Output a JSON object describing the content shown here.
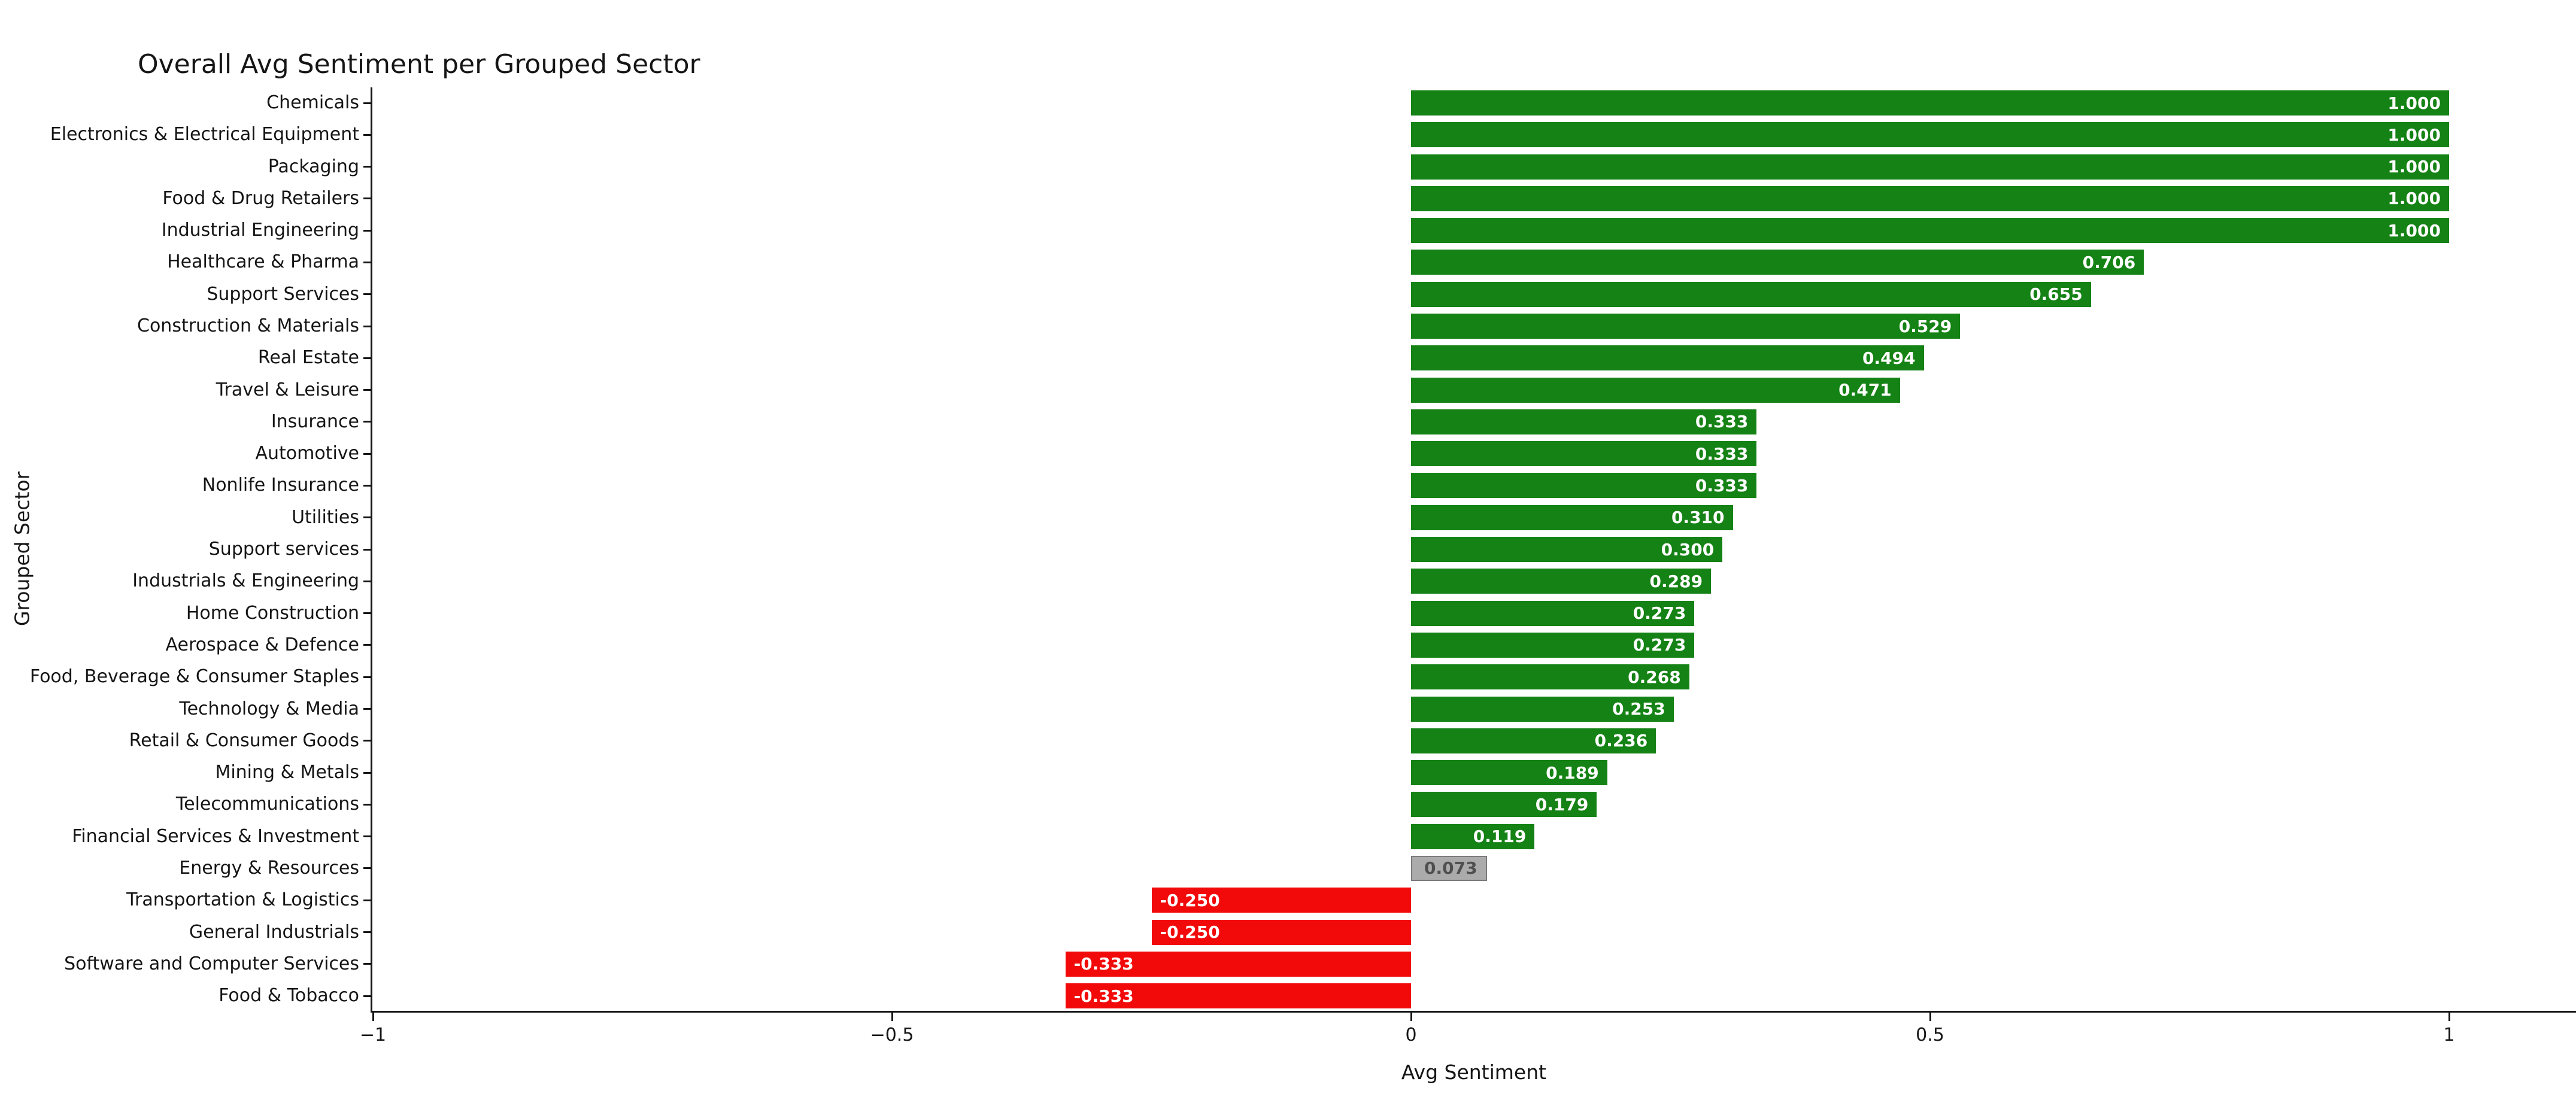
{
  "chart_data": {
    "type": "bar",
    "orientation": "horizontal",
    "title": "Overall Avg Sentiment per Grouped Sector",
    "xlabel": "Avg Sentiment",
    "ylabel": "Grouped Sector",
    "xlim": [
      -1,
      1.12
    ],
    "grid": false,
    "legend": false,
    "xticks": {
      "values": [
        -1,
        -0.5,
        0,
        0.5,
        1
      ],
      "labels": [
        "−1",
        "−0.5",
        "0",
        "0.5",
        "1"
      ]
    },
    "bars": [
      {
        "label": "Chemicals",
        "value": 1.0,
        "display": "1.000",
        "tone": "positive"
      },
      {
        "label": "Electronics & Electrical Equipment",
        "value": 1.0,
        "display": "1.000",
        "tone": "positive"
      },
      {
        "label": "Packaging",
        "value": 1.0,
        "display": "1.000",
        "tone": "positive"
      },
      {
        "label": "Food & Drug Retailers",
        "value": 1.0,
        "display": "1.000",
        "tone": "positive"
      },
      {
        "label": "Industrial Engineering",
        "value": 1.0,
        "display": "1.000",
        "tone": "positive"
      },
      {
        "label": "Healthcare & Pharma",
        "value": 0.706,
        "display": "0.706",
        "tone": "positive"
      },
      {
        "label": "Support Services",
        "value": 0.655,
        "display": "0.655",
        "tone": "positive"
      },
      {
        "label": "Construction & Materials",
        "value": 0.529,
        "display": "0.529",
        "tone": "positive"
      },
      {
        "label": "Real Estate",
        "value": 0.494,
        "display": "0.494",
        "tone": "positive"
      },
      {
        "label": "Travel & Leisure",
        "value": 0.471,
        "display": "0.471",
        "tone": "positive"
      },
      {
        "label": "Insurance",
        "value": 0.333,
        "display": "0.333",
        "tone": "positive"
      },
      {
        "label": "Automotive",
        "value": 0.333,
        "display": "0.333",
        "tone": "positive"
      },
      {
        "label": "Nonlife Insurance",
        "value": 0.333,
        "display": "0.333",
        "tone": "positive"
      },
      {
        "label": "Utilities",
        "value": 0.31,
        "display": "0.310",
        "tone": "positive"
      },
      {
        "label": "Support services",
        "value": 0.3,
        "display": "0.300",
        "tone": "positive"
      },
      {
        "label": "Industrials & Engineering",
        "value": 0.289,
        "display": "0.289",
        "tone": "positive"
      },
      {
        "label": "Home Construction",
        "value": 0.273,
        "display": "0.273",
        "tone": "positive"
      },
      {
        "label": "Aerospace & Defence",
        "value": 0.273,
        "display": "0.273",
        "tone": "positive"
      },
      {
        "label": "Food, Beverage & Consumer Staples",
        "value": 0.268,
        "display": "0.268",
        "tone": "positive"
      },
      {
        "label": "Technology & Media",
        "value": 0.253,
        "display": "0.253",
        "tone": "positive"
      },
      {
        "label": "Retail & Consumer Goods",
        "value": 0.236,
        "display": "0.236",
        "tone": "positive"
      },
      {
        "label": "Mining & Metals",
        "value": 0.189,
        "display": "0.189",
        "tone": "positive"
      },
      {
        "label": "Telecommunications",
        "value": 0.179,
        "display": "0.179",
        "tone": "positive"
      },
      {
        "label": "Financial Services & Investment",
        "value": 0.119,
        "display": "0.119",
        "tone": "positive"
      },
      {
        "label": "Energy & Resources",
        "value": 0.073,
        "display": "0.073",
        "tone": "neutral"
      },
      {
        "label": "Transportation & Logistics",
        "value": -0.25,
        "display": "-0.250",
        "tone": "negative"
      },
      {
        "label": "General Industrials",
        "value": -0.25,
        "display": "-0.250",
        "tone": "negative"
      },
      {
        "label": "Software and Computer Services",
        "value": -0.333,
        "display": "-0.333",
        "tone": "negative"
      },
      {
        "label": "Food & Tobacco",
        "value": -0.333,
        "display": "-0.333",
        "tone": "negative"
      }
    ],
    "colors": {
      "positive": "#148214",
      "negative": "#f20a0a",
      "neutral_fill": "#ababab",
      "neutral_border": "#7a7a7a",
      "neutral_text": "#4f4f4f",
      "value_text": "#ffffff",
      "axis": "#151515",
      "background": "#ffffff"
    }
  }
}
